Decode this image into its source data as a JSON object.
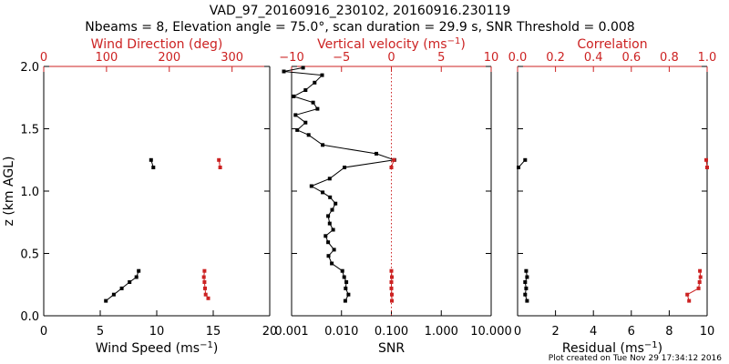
{
  "header": {
    "title_line1": "VAD_97_20160916_230102, 20160916.230119",
    "title_line2": "Nbeams = 8, Elevation angle = 75.0°, scan duration = 29.9 s, SNR Threshold = 0.008"
  },
  "footer": {
    "credit": "Plot created on Tue Nov 29 17:34:12 2016"
  },
  "colors": {
    "primary": "#000000",
    "secondary": "#cc2222"
  },
  "chart_data": [
    {
      "type": "line",
      "panel": "wind",
      "ylabel_parts": [
        "z (km AGL)"
      ],
      "ylim": [
        0,
        2
      ],
      "yticks": [
        0,
        0.5,
        1,
        1.5,
        2
      ],
      "ytick_labels": [
        "0.0",
        "0.5",
        "1.0",
        "1.5",
        "2.0"
      ],
      "bottom_axis": {
        "label_parts": [
          "Wind Speed (ms",
          "−1",
          ")"
        ],
        "range": [
          0,
          20
        ],
        "scale": "linear",
        "ticks": [
          0,
          5,
          10,
          15,
          20
        ],
        "tick_labels": [
          "0",
          "5",
          "10",
          "15",
          "20"
        ]
      },
      "top_axis": {
        "label_parts": [
          "Wind Direction (deg)"
        ],
        "range": [
          0,
          360
        ],
        "scale": "linear",
        "ticks": [
          0,
          100,
          200,
          300
        ],
        "tick_labels": [
          "0",
          "100",
          "200",
          "300"
        ]
      },
      "series": [
        {
          "axis": "bottom",
          "color_key": "primary",
          "segments": [
            [
              [
                5.5,
                0.12
              ],
              [
                6.2,
                0.17
              ],
              [
                6.9,
                0.22
              ],
              [
                7.6,
                0.27
              ],
              [
                8.2,
                0.31
              ],
              [
                8.4,
                0.36
              ]
            ],
            [
              [
                9.5,
                1.25
              ],
              [
                9.7,
                1.19
              ]
            ]
          ]
        },
        {
          "axis": "top",
          "color_key": "secondary",
          "segments": [
            [
              [
                262,
                0.14
              ],
              [
                258,
                0.17
              ],
              [
                257,
                0.22
              ],
              [
                256,
                0.27
              ],
              [
                255,
                0.31
              ],
              [
                256,
                0.36
              ]
            ],
            [
              [
                279,
                1.25
              ],
              [
                281,
                1.19
              ]
            ]
          ]
        }
      ]
    },
    {
      "type": "line",
      "panel": "snr",
      "ylim": [
        0,
        2
      ],
      "yticks": [
        0,
        0.5,
        1,
        1.5,
        2
      ],
      "bottom_axis": {
        "label_parts": [
          "SNR"
        ],
        "range": [
          0.001,
          10
        ],
        "scale": "log",
        "ticks": [
          0.001,
          0.01,
          0.1,
          1,
          10
        ],
        "tick_labels": [
          "0.001",
          "0.010",
          "0.100",
          "1.000",
          "10.000"
        ]
      },
      "top_axis": {
        "label_parts": [
          "Vertical velocity (ms",
          "−1",
          ")"
        ],
        "range": [
          -10,
          10
        ],
        "scale": "linear",
        "ticks": [
          -10,
          -5,
          0,
          5,
          10
        ],
        "tick_labels": [
          "−10",
          "−5",
          "0",
          "5",
          "10"
        ]
      },
      "reference_line": {
        "axis": "top",
        "value": 0,
        "color_key": "secondary",
        "style": "dotted"
      },
      "series": [
        {
          "axis": "bottom",
          "color_key": "primary",
          "segments": [
            [
              [
                0.0119,
                0.12
              ],
              [
                0.0138,
                0.17
              ],
              [
                0.0121,
                0.22
              ],
              [
                0.0125,
                0.27
              ],
              [
                0.0113,
                0.31
              ],
              [
                0.0104,
                0.36
              ],
              [
                0.0064,
                0.42
              ],
              [
                0.0055,
                0.48
              ],
              [
                0.0071,
                0.53
              ],
              [
                0.0054,
                0.59
              ],
              [
                0.0048,
                0.64
              ],
              [
                0.0068,
                0.69
              ],
              [
                0.0058,
                0.74
              ],
              [
                0.0054,
                0.8
              ],
              [
                0.0065,
                0.85
              ],
              [
                0.0076,
                0.9
              ],
              [
                0.0059,
                0.95
              ],
              [
                0.0042,
                0.99
              ],
              [
                0.0025,
                1.04
              ],
              [
                0.0058,
                1.1
              ],
              [
                0.0115,
                1.19
              ],
              [
                0.115,
                1.25
              ],
              [
                0.05,
                1.3
              ],
              [
                0.0042,
                1.37
              ],
              [
                0.0022,
                1.45
              ],
              [
                0.0013,
                1.49
              ],
              [
                0.0019,
                1.55
              ],
              [
                0.0012,
                1.61
              ],
              [
                0.0033,
                1.66
              ],
              [
                0.0027,
                1.71
              ],
              [
                0.0011,
                1.76
              ],
              [
                0.0019,
                1.81
              ],
              [
                0.0029,
                1.87
              ],
              [
                0.0041,
                1.93
              ],
              [
                0.0007,
                1.96
              ],
              [
                0.0017,
                1.99
              ]
            ]
          ]
        },
        {
          "axis": "top",
          "color_key": "secondary",
          "segments": [
            [
              [
                0.05,
                0.12
              ],
              [
                0.05,
                0.17
              ],
              [
                0.0,
                0.22
              ],
              [
                0.0,
                0.27
              ],
              [
                0.05,
                0.31
              ],
              [
                0.0,
                0.36
              ]
            ],
            [
              [
                0.25,
                1.25
              ],
              [
                0.0,
                1.19
              ]
            ]
          ]
        }
      ]
    },
    {
      "type": "line",
      "panel": "residual",
      "ylim": [
        0,
        2
      ],
      "yticks": [
        0,
        0.5,
        1,
        1.5,
        2
      ],
      "bottom_axis": {
        "label_parts": [
          "Residual (ms",
          "−1",
          ")"
        ],
        "range": [
          0,
          10
        ],
        "scale": "linear",
        "ticks": [
          0,
          2,
          4,
          6,
          8,
          10
        ],
        "tick_labels": [
          "0",
          "2",
          "4",
          "6",
          "8",
          "10"
        ]
      },
      "top_axis": {
        "label_parts": [
          "Correlation"
        ],
        "range": [
          0,
          1
        ],
        "scale": "linear",
        "ticks": [
          0,
          0.2,
          0.4,
          0.6,
          0.8,
          1.0
        ],
        "tick_labels": [
          "0.0",
          "0.2",
          "0.4",
          "0.6",
          "0.8",
          "1.0"
        ]
      },
      "series": [
        {
          "axis": "bottom",
          "color_key": "primary",
          "segments": [
            [
              [
                0.5,
                0.12
              ],
              [
                0.4,
                0.17
              ],
              [
                0.45,
                0.22
              ],
              [
                0.4,
                0.27
              ],
              [
                0.5,
                0.31
              ],
              [
                0.45,
                0.36
              ]
            ],
            [
              [
                0.4,
                1.25
              ],
              [
                0.05,
                1.19
              ]
            ]
          ]
        },
        {
          "axis": "top",
          "color_key": "secondary",
          "segments": [
            [
              [
                0.905,
                0.12
              ],
              [
                0.895,
                0.17
              ],
              [
                0.955,
                0.22
              ],
              [
                0.96,
                0.27
              ],
              [
                0.965,
                0.31
              ],
              [
                0.962,
                0.36
              ]
            ],
            [
              [
                0.995,
                1.25
              ],
              [
                1.0,
                1.19
              ]
            ]
          ]
        }
      ]
    }
  ]
}
